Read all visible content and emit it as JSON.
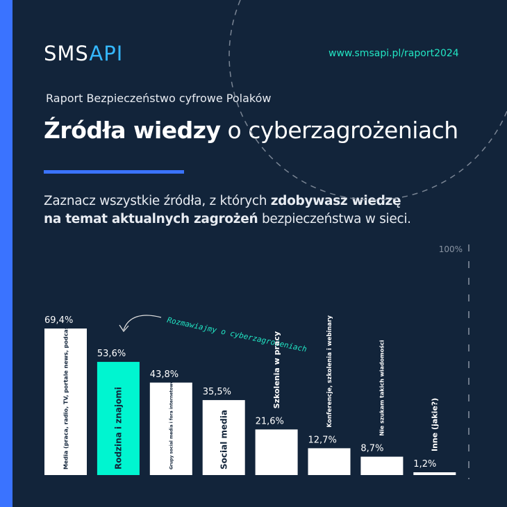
{
  "header": {
    "logo_a": "SMS",
    "logo_b": "API",
    "url": "www.smsapi.pl/raport2024"
  },
  "subtitle": "Raport Bezpieczeństwo cyfrowe Polaków",
  "title": {
    "bold": "Źródła wiedzy",
    "rest": " o cyberzagrożeniach"
  },
  "question": {
    "p1": "Zaznacz wszystkie źródła, z których ",
    "b1": "zdobywasz wiedzę",
    "b2": "na temat aktualnych zagrożeń",
    "p2": " bezpieczeństwa w sieci."
  },
  "annotation": "Rozmawiajmy o cyberzagrożeniach",
  "colors": {
    "bg": "#12243a",
    "accent": "#3a73ff",
    "highlight": "#00f5d0",
    "bar": "#ffffff"
  },
  "chart_data": {
    "type": "bar",
    "title": "Źródła wiedzy o cyberzagrożeniach",
    "ylim": [
      0,
      100
    ],
    "max_label": "100%",
    "categories": [
      "Media (praca, radio, TV, portale news, podcast)",
      "Rodzina i znajomi",
      "Grupy social media i fora internetowe",
      "Social media",
      "Szkolenia w pracy",
      "Konferencje, szkolenia i webinary",
      "Nie szukam takich wiadomości",
      "Inne (jakie?)"
    ],
    "values": [
      69.4,
      53.6,
      43.8,
      35.5,
      21.6,
      12.7,
      8.7,
      1.2
    ],
    "value_labels": [
      "69,4%",
      "53,6%",
      "43,8%",
      "35,5%",
      "21,6%",
      "12,7%",
      "8,7%",
      "1,2%"
    ],
    "highlighted": "Rodzina i znajomi"
  }
}
